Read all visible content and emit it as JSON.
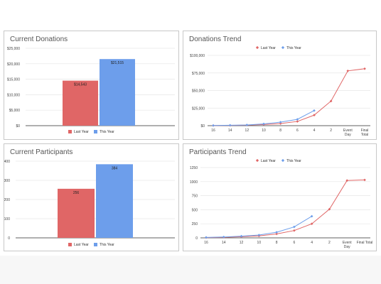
{
  "colors": {
    "last_year": "#e06666",
    "this_year": "#6d9eeb",
    "grid": "#e6e6e6",
    "axis": "#333333"
  },
  "chart_data": [
    {
      "id": "current-donations",
      "type": "bar",
      "title": "Current Donations",
      "categories": [
        ""
      ],
      "series": [
        {
          "name": "Last Year",
          "values": [
            14543
          ],
          "label": "$14,543"
        },
        {
          "name": "This Year",
          "values": [
            21515
          ],
          "label": "$21,515"
        }
      ],
      "ylim": [
        0,
        25000
      ],
      "yticks": [
        0,
        5000,
        10000,
        15000,
        20000,
        25000
      ],
      "ytick_labels": [
        "$0",
        "$5,000",
        "$10,000",
        "$15,000",
        "$20,000",
        "$25,000"
      ],
      "legend": "bottom",
      "grid": true
    },
    {
      "id": "donations-trend",
      "type": "line",
      "title": "Donations Trend",
      "x": [
        "16",
        "14",
        "12",
        "10",
        "8",
        "6",
        "4",
        "2",
        "Event Day",
        "Final Total"
      ],
      "series": [
        {
          "name": "Last Year",
          "values": [
            200,
            400,
            800,
            1600,
            3000,
            6000,
            15000,
            35000,
            78000,
            81000
          ]
        },
        {
          "name": "This Year",
          "values": [
            300,
            600,
            1000,
            2500,
            5000,
            9000,
            21515,
            null,
            null,
            null
          ]
        }
      ],
      "ylim": [
        0,
        100000
      ],
      "yticks": [
        0,
        25000,
        50000,
        75000,
        100000
      ],
      "ytick_labels": [
        "$0",
        "$25,000",
        "$50,000",
        "$75,000",
        "$100,000"
      ],
      "legend": "top",
      "grid": true
    },
    {
      "id": "current-participants",
      "type": "bar",
      "title": "Current Participants",
      "categories": [
        ""
      ],
      "series": [
        {
          "name": "Last Year",
          "values": [
            256
          ],
          "label": "256"
        },
        {
          "name": "This Year",
          "values": [
            384
          ],
          "label": "384"
        }
      ],
      "ylim": [
        0,
        400
      ],
      "yticks": [
        0,
        100,
        200,
        300,
        400
      ],
      "ytick_labels": [
        "0",
        "100",
        "200",
        "300",
        "400"
      ],
      "legend": "bottom",
      "grid": true
    },
    {
      "id": "participants-trend",
      "type": "line",
      "title": "Participants Trend",
      "x": [
        "16",
        "14",
        "12",
        "10",
        "8",
        "6",
        "4",
        "2",
        "Event Day",
        "Final Total"
      ],
      "series": [
        {
          "name": "Last Year",
          "values": [
            5,
            10,
            20,
            35,
            70,
            130,
            250,
            510,
            1020,
            1030
          ]
        },
        {
          "name": "This Year",
          "values": [
            8,
            15,
            30,
            50,
            100,
            195,
            384,
            null,
            null,
            null
          ]
        }
      ],
      "ylim": [
        0,
        1250
      ],
      "yticks": [
        0,
        250,
        500,
        750,
        1000,
        1250
      ],
      "ytick_labels": [
        "0",
        "250",
        "500",
        "750",
        "1000",
        "1250"
      ],
      "legend": "top",
      "grid": true
    }
  ]
}
